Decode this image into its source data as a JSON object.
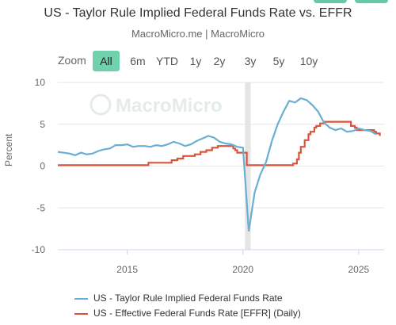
{
  "header": {
    "title": "US - Taylor Rule Implied Federal Funds Rate vs. EFFR",
    "subtitle": "MacroMicro.me | MacroMicro"
  },
  "range_selector": {
    "zoom_label": "Zoom",
    "buttons": [
      "All",
      "6m",
      "YTD",
      "1y",
      "2y",
      "3y",
      "5y",
      "10y"
    ],
    "selected": "All"
  },
  "watermark": {
    "text": "MacroMicro"
  },
  "colors": {
    "taylor": "#6aaed6",
    "effr": "#d8543c",
    "accent": "#6fd2ad",
    "shade": "#e5e5e5",
    "grid": "#e6e6e6"
  },
  "chart_data": {
    "type": "line",
    "title": "US - Taylor Rule Implied Federal Funds Rate vs. EFFR",
    "subtitle": "MacroMicro.me | MacroMicro",
    "ylabel": "Percent",
    "xlabel": "",
    "ylim": [
      -10,
      10
    ],
    "yticks": [
      "10",
      "5",
      "0",
      "-5",
      "-10"
    ],
    "xticks": [
      "2015",
      "2020",
      "2025"
    ],
    "grid": "horizontal",
    "legend_position": "bottom",
    "shaded_period": [
      "2020-02",
      "2020-05"
    ],
    "series": [
      {
        "name": "US - Taylor Rule Implied Federal Funds Rate",
        "frequency": "quarterly",
        "points": [
          [
            "2012-01",
            1.7
          ],
          [
            "2012-07",
            1.5
          ],
          [
            "2012-10",
            1.3
          ],
          [
            "2013-01",
            1.6
          ],
          [
            "2013-04",
            1.4
          ],
          [
            "2013-07",
            1.5
          ],
          [
            "2013-10",
            1.8
          ],
          [
            "2014-01",
            2.0
          ],
          [
            "2014-04",
            2.1
          ],
          [
            "2014-07",
            2.5
          ],
          [
            "2014-10",
            2.5
          ],
          [
            "2015-01",
            2.6
          ],
          [
            "2015-04",
            2.3
          ],
          [
            "2015-07",
            2.4
          ],
          [
            "2015-10",
            2.4
          ],
          [
            "2016-01",
            2.3
          ],
          [
            "2016-04",
            2.5
          ],
          [
            "2016-07",
            2.4
          ],
          [
            "2016-10",
            2.6
          ],
          [
            "2017-01",
            2.9
          ],
          [
            "2017-04",
            2.7
          ],
          [
            "2017-07",
            2.4
          ],
          [
            "2017-10",
            2.6
          ],
          [
            "2018-01",
            3.0
          ],
          [
            "2018-04",
            3.3
          ],
          [
            "2018-07",
            3.6
          ],
          [
            "2018-10",
            3.4
          ],
          [
            "2019-01",
            2.9
          ],
          [
            "2019-04",
            2.7
          ],
          [
            "2019-07",
            2.6
          ],
          [
            "2019-10",
            2.3
          ],
          [
            "2020-01",
            2.2
          ],
          [
            "2020-04",
            -7.8
          ],
          [
            "2020-07",
            -3.2
          ],
          [
            "2020-10",
            -1.0
          ],
          [
            "2021-01",
            0.5
          ],
          [
            "2021-04",
            3.0
          ],
          [
            "2021-07",
            5.0
          ],
          [
            "2021-10",
            6.5
          ],
          [
            "2022-01",
            7.8
          ],
          [
            "2022-04",
            7.6
          ],
          [
            "2022-07",
            8.1
          ],
          [
            "2022-10",
            7.9
          ],
          [
            "2023-01",
            7.3
          ],
          [
            "2023-04",
            6.5
          ],
          [
            "2023-07",
            5.2
          ],
          [
            "2023-10",
            4.6
          ],
          [
            "2024-01",
            4.3
          ],
          [
            "2024-04",
            4.5
          ],
          [
            "2024-07",
            4.1
          ],
          [
            "2024-10",
            4.2
          ],
          [
            "2025-01",
            4.5
          ],
          [
            "2025-04",
            4.3
          ],
          [
            "2025-07",
            4.2
          ],
          [
            "2025-10",
            3.8
          ]
        ]
      },
      {
        "name": "US - Effective Federal Funds Rate [EFFR] (Daily)",
        "frequency": "daily (step)",
        "points": [
          [
            "2012-01",
            0.1
          ],
          [
            "2015-12",
            0.1
          ],
          [
            "2015-12",
            0.4
          ],
          [
            "2016-12",
            0.4
          ],
          [
            "2016-12",
            0.7
          ],
          [
            "2017-03",
            0.9
          ],
          [
            "2017-06",
            1.2
          ],
          [
            "2017-12",
            1.4
          ],
          [
            "2018-03",
            1.7
          ],
          [
            "2018-06",
            1.9
          ],
          [
            "2018-09",
            2.2
          ],
          [
            "2018-12",
            2.4
          ],
          [
            "2019-07",
            2.4
          ],
          [
            "2019-08",
            2.1
          ],
          [
            "2019-09",
            1.9
          ],
          [
            "2019-10",
            1.6
          ],
          [
            "2020-02",
            1.6
          ],
          [
            "2020-03",
            0.1
          ],
          [
            "2022-02",
            0.1
          ],
          [
            "2022-03",
            0.3
          ],
          [
            "2022-05",
            0.8
          ],
          [
            "2022-06",
            1.6
          ],
          [
            "2022-07",
            2.3
          ],
          [
            "2022-09",
            3.1
          ],
          [
            "2022-11",
            3.8
          ],
          [
            "2022-12",
            4.1
          ],
          [
            "2023-02",
            4.6
          ],
          [
            "2023-03",
            4.8
          ],
          [
            "2023-05",
            5.1
          ],
          [
            "2023-07",
            5.3
          ],
          [
            "2024-09",
            5.3
          ],
          [
            "2024-09",
            4.8
          ],
          [
            "2024-11",
            4.6
          ],
          [
            "2024-12",
            4.3
          ],
          [
            "2025-09",
            4.3
          ],
          [
            "2025-09",
            4.1
          ],
          [
            "2025-10",
            3.9
          ],
          [
            "2025-12",
            3.6
          ]
        ]
      }
    ]
  }
}
